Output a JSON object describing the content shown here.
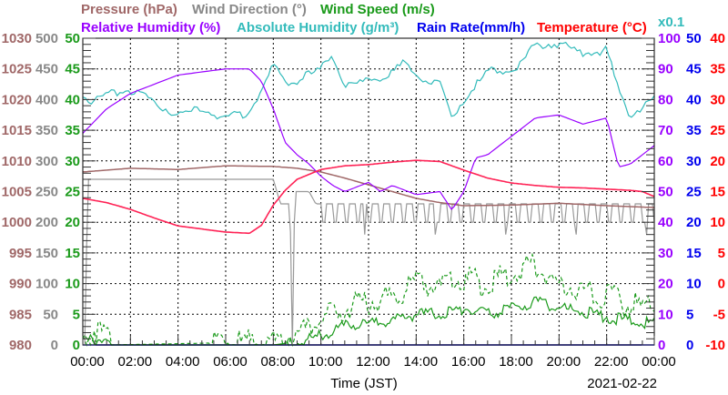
{
  "chart_data": {
    "type": "line",
    "legend": {
      "row1": [
        {
          "key": "pressure",
          "label": "Pressure (hPa)",
          "color": "#a06868"
        },
        {
          "key": "wind_direction",
          "label": "Wind Direction (°)",
          "color": "#888888"
        },
        {
          "key": "wind_speed",
          "label": "Wind Speed (m/s)",
          "color": "#1a9a1a"
        }
      ],
      "row2": [
        {
          "key": "relative_humidity",
          "label": "Relative Humidity (%)",
          "color": "#9900ff"
        },
        {
          "key": "absolute_humidity",
          "label": "Absolute Humidity (g/m³)",
          "color": "#33bbbb"
        },
        {
          "key": "rain_rate",
          "label": "Rain Rate(mm/h)",
          "color": "#0000ee"
        },
        {
          "key": "temperature",
          "label": "Temperature (°C)",
          "color": "#ff0000"
        }
      ],
      "scale_note": "x0.1"
    },
    "xlabel": "Time (JST)",
    "date": "2021-02-22",
    "x_ticks": [
      "00:00",
      "02:00",
      "04:00",
      "06:00",
      "08:00",
      "10:00",
      "12:00",
      "14:00",
      "16:00",
      "18:00",
      "20:00",
      "22:00",
      "00:00"
    ],
    "xlim_hours": [
      0,
      24
    ],
    "axes": {
      "pressure": {
        "range": [
          980,
          1030
        ],
        "ticks": [
          "980",
          "985",
          "990",
          "995",
          "1000",
          "1005",
          "1010",
          "1015",
          "1020",
          "1025",
          "1030"
        ],
        "side": "left",
        "color": "#a06868"
      },
      "wind_direction": {
        "range": [
          0,
          500
        ],
        "ticks": [
          "0",
          "50",
          "100",
          "150",
          "200",
          "250",
          "300",
          "350",
          "400",
          "450",
          "500"
        ],
        "side": "left",
        "color": "#888888"
      },
      "wind_speed": {
        "range": [
          0,
          50
        ],
        "ticks": [
          "0",
          "5",
          "10",
          "15",
          "20",
          "25",
          "30",
          "35",
          "40",
          "45",
          "50"
        ],
        "side": "left",
        "color": "#1a9a1a"
      },
      "relative_humidity": {
        "range": [
          0,
          100
        ],
        "ticks": [
          "0",
          "10",
          "20",
          "30",
          "40",
          "50",
          "60",
          "70",
          "80",
          "90",
          "100"
        ],
        "side": "right",
        "color": "#9900ff"
      },
      "rain_rate": {
        "range": [
          0,
          50
        ],
        "ticks": [
          "0",
          "5",
          "10",
          "15",
          "20",
          "25",
          "30",
          "35",
          "40",
          "45",
          "50"
        ],
        "side": "right",
        "color": "#0000ee"
      },
      "temperature": {
        "range": [
          -10,
          40
        ],
        "ticks": [
          "-10",
          "-5",
          "0",
          "5",
          "10",
          "15",
          "20",
          "25",
          "30",
          "35",
          "40"
        ],
        "side": "right",
        "color": "#ff0000"
      }
    },
    "grid": true,
    "series": {
      "temperature": {
        "axis": "temperature",
        "x": [
          0,
          1,
          2,
          3,
          4,
          5,
          6,
          7,
          7.5,
          8,
          8.5,
          9,
          10,
          11,
          12,
          13,
          14,
          15,
          16,
          17,
          18,
          19,
          20,
          21,
          22,
          23,
          23.5,
          24
        ],
        "y": [
          13.9,
          13.2,
          12.1,
          10.7,
          9.4,
          8.9,
          8.4,
          8.2,
          9.5,
          12.8,
          15.2,
          17,
          18.6,
          19.2,
          19.4,
          19.8,
          20.1,
          19.9,
          18.5,
          17.2,
          16.4,
          16,
          15.7,
          15.6,
          15.4,
          15.2,
          15,
          14.2
        ]
      },
      "relative_humidity": {
        "axis": "relative_humidity",
        "x": [
          0,
          1,
          2,
          3,
          4,
          5,
          6,
          7,
          7.5,
          8,
          8.5,
          9,
          9.5,
          10,
          10.5,
          11,
          12,
          12.5,
          13,
          14,
          15,
          15.5,
          16,
          16.5,
          17,
          18,
          19,
          20,
          21,
          22,
          22.5,
          23,
          24
        ],
        "y": [
          69,
          77,
          82,
          85,
          88,
          89,
          90,
          90,
          86,
          77,
          66,
          62,
          59,
          55,
          52,
          50,
          53,
          50,
          52,
          49,
          50,
          44,
          50,
          61,
          62,
          68,
          74,
          75,
          72,
          74,
          58,
          59,
          65
        ]
      },
      "absolute_humidity": {
        "axis": "relative_humidity",
        "scale": 0.1,
        "x": [
          0,
          0.5,
          1,
          2,
          3,
          4,
          5,
          6,
          7,
          7.5,
          8,
          8.5,
          9,
          10,
          10.5,
          11,
          11.5,
          12,
          13,
          13.5,
          14,
          15,
          15.5,
          16,
          17,
          18,
          18.5,
          19,
          20,
          21,
          22,
          22.5,
          23,
          24
        ],
        "y": [
          8.1,
          7.9,
          8.2,
          8.3,
          7.9,
          7.5,
          7.7,
          7.4,
          7.6,
          8.3,
          9.1,
          8.6,
          8.6,
          9.0,
          9.5,
          8.4,
          8.5,
          8.6,
          8.9,
          9.2,
          8.8,
          8.5,
          7.4,
          8.0,
          8.9,
          9.0,
          9.2,
          9.8,
          9.8,
          9.5,
          9.6,
          8.3,
          7.5,
          8.0
        ]
      },
      "pressure": {
        "axis": "pressure",
        "x": [
          0,
          2,
          4,
          6,
          8,
          9,
          10,
          11,
          12,
          13,
          14,
          15,
          16,
          18,
          20,
          22,
          24
        ],
        "y": [
          1008.2,
          1008.8,
          1008.6,
          1009.2,
          1009.1,
          1008.8,
          1008.2,
          1007.2,
          1006.1,
          1005,
          1003.9,
          1003.2,
          1002.7,
          1002.8,
          1003.1,
          1002.7,
          1002.4
        ]
      },
      "wind_direction": {
        "axis": "wind_direction",
        "x": [
          0,
          0.1,
          0.2,
          1,
          2,
          4,
          6,
          8,
          8.3,
          8.5,
          8.7,
          8.8,
          8.9,
          9,
          9.5,
          10,
          12,
          14,
          16,
          18,
          20,
          22,
          24
        ],
        "y": [
          0,
          0,
          270,
          270,
          270,
          270,
          270,
          270,
          230,
          230,
          230,
          0,
          250,
          250,
          250,
          215,
          215,
          215,
          215,
          215,
          215,
          215,
          215
        ]
      },
      "wind_speed_avg": {
        "axis": "wind_speed",
        "x": [
          0,
          0.5,
          1,
          1.2,
          8,
          9,
          10,
          11,
          12,
          13,
          14,
          15,
          16,
          17,
          18,
          19,
          20,
          21,
          22,
          23,
          24
        ],
        "y": [
          0.5,
          1,
          1,
          0,
          0,
          0.5,
          1.5,
          3,
          3.5,
          4,
          5,
          5,
          6,
          5,
          6,
          7,
          6,
          5.5,
          4.5,
          4,
          3.5
        ]
      },
      "wind_speed_gust": {
        "axis": "wind_speed",
        "x": [
          0,
          0.5,
          1,
          1.2,
          8,
          9,
          10,
          11,
          12,
          13,
          14,
          15,
          16,
          17,
          18,
          19,
          20,
          21,
          22,
          23,
          24
        ],
        "y": [
          1,
          2.5,
          2,
          0,
          0.5,
          1.5,
          4,
          6,
          7,
          8,
          10,
          9.5,
          11,
          9.5,
          12,
          13,
          10,
          9,
          8,
          6.5,
          6
        ]
      },
      "rain_rate": {
        "axis": "rain_rate",
        "x": [
          0,
          24
        ],
        "y": [
          0,
          0
        ]
      }
    }
  }
}
